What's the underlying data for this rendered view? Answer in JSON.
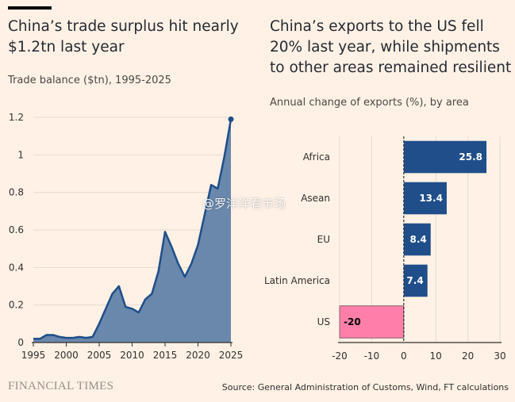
{
  "left": {
    "title": "China’s trade surplus hit nearly $1.2tn last year",
    "subtitle": "Trade balance ($tn), 1995-2025"
  },
  "right": {
    "title": "China’s exports to the US fell 20% last year, while shipments to other areas remained resilient",
    "subtitle": "Annual change of exports (%), by area"
  },
  "footer": {
    "brand": "FINANCIAL TIMES",
    "source": "Source: General Administration of Customs, Wind, FT calculations"
  },
  "watermark": "@罗洋洋看市场",
  "colors": {
    "area_fill": "#6A88AC",
    "area_line": "#1F4E8A",
    "bar_blue": "#1F4E8A",
    "bar_pink": "#FF7FAA"
  },
  "chart_data": [
    {
      "type": "area",
      "x": [
        1995,
        1996,
        1997,
        1998,
        1999,
        2000,
        2001,
        2002,
        2003,
        2004,
        2005,
        2006,
        2007,
        2008,
        2009,
        2010,
        2011,
        2012,
        2013,
        2014,
        2015,
        2016,
        2017,
        2018,
        2019,
        2020,
        2021,
        2022,
        2023,
        2024,
        2025
      ],
      "values": [
        0.02,
        0.02,
        0.04,
        0.04,
        0.03,
        0.025,
        0.025,
        0.03,
        0.025,
        0.03,
        0.1,
        0.18,
        0.26,
        0.3,
        0.19,
        0.18,
        0.16,
        0.23,
        0.26,
        0.38,
        0.59,
        0.51,
        0.42,
        0.35,
        0.42,
        0.52,
        0.68,
        0.84,
        0.82,
        0.99,
        1.19
      ],
      "xticks": [
        "1995",
        "2000",
        "2005",
        "2010",
        "2015",
        "2020",
        "2025"
      ],
      "yticks": [
        "0",
        "0.2",
        "0.4",
        "0.6",
        "0.8",
        "1",
        "1.2"
      ],
      "xlim": [
        1995,
        2025
      ],
      "ylim": [
        0,
        1.2
      ]
    },
    {
      "type": "bar",
      "orientation": "horizontal",
      "categories": [
        "Africa",
        "Asean",
        "EU",
        "Latin America",
        "US"
      ],
      "values": [
        25.8,
        13.4,
        8.4,
        7.4,
        -20
      ],
      "labels": [
        "25.8",
        "13.4",
        "8.4",
        "7.4",
        "-20"
      ],
      "xticks": [
        "-20",
        "-10",
        "0",
        "10",
        "20",
        "30"
      ],
      "xlim": [
        -20,
        30
      ]
    }
  ]
}
